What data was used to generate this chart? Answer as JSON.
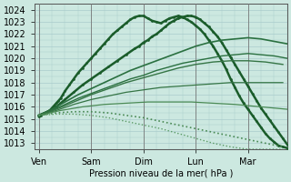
{
  "xlabel": "Pression niveau de la mer( hPa )",
  "ylim": [
    1012.5,
    1024.5
  ],
  "yticks": [
    1013,
    1014,
    1015,
    1016,
    1017,
    1018,
    1019,
    1020,
    1021,
    1022,
    1023,
    1024
  ],
  "xtick_labels": [
    "Ven",
    "Sam",
    "Dim",
    "Lun",
    "Mar"
  ],
  "xtick_positions": [
    0,
    24,
    48,
    72,
    96
  ],
  "xlim": [
    -2,
    114
  ],
  "bg_color": "#cce8e0",
  "grid_color": "#aacccc",
  "series": [
    {
      "x": [
        0,
        1,
        2,
        3,
        4,
        5,
        6,
        7,
        8,
        9,
        10,
        11,
        12,
        14,
        16,
        18,
        20,
        22,
        24,
        26,
        28,
        30,
        32,
        34,
        36,
        38,
        40,
        42,
        44,
        46,
        48,
        50,
        52,
        54,
        56,
        58,
        60,
        62,
        64,
        66,
        68,
        70,
        72,
        74,
        76,
        78,
        80,
        82,
        84,
        86,
        88,
        90,
        92,
        94,
        96,
        98,
        100,
        102,
        104,
        106,
        108,
        110,
        112,
        114
      ],
      "y": [
        1015.2,
        1015.3,
        1015.4,
        1015.5,
        1015.6,
        1015.7,
        1015.9,
        1016.1,
        1016.3,
        1016.5,
        1016.7,
        1017.0,
        1017.3,
        1017.8,
        1018.3,
        1018.8,
        1019.2,
        1019.6,
        1020.0,
        1020.4,
        1020.8,
        1021.2,
        1021.6,
        1022.0,
        1022.3,
        1022.6,
        1022.9,
        1023.2,
        1023.4,
        1023.5,
        1023.5,
        1023.3,
        1023.1,
        1023.0,
        1022.9,
        1023.1,
        1023.3,
        1023.4,
        1023.5,
        1023.4,
        1023.2,
        1023.0,
        1022.7,
        1022.4,
        1022.0,
        1021.5,
        1021.0,
        1020.4,
        1019.8,
        1019.1,
        1018.3,
        1017.6,
        1016.9,
        1016.3,
        1015.8,
        1015.3,
        1014.8,
        1014.3,
        1013.8,
        1013.4,
        1013.1,
        1012.8,
        1012.7,
        1012.6
      ],
      "style": "-",
      "lw": 1.8,
      "color": "#1a5c2a",
      "marker": ".",
      "ms": 1.8
    },
    {
      "x": [
        0,
        4,
        8,
        12,
        16,
        20,
        24,
        28,
        32,
        36,
        40,
        44,
        46,
        48,
        50,
        52,
        54,
        56,
        58,
        60,
        62,
        64,
        66,
        68,
        70,
        72,
        74,
        76,
        78,
        80,
        82,
        84,
        86,
        88,
        90,
        92,
        94,
        96,
        98,
        100,
        102,
        104,
        106,
        108,
        110,
        112,
        114
      ],
      "y": [
        1015.3,
        1015.6,
        1016.0,
        1016.6,
        1017.2,
        1017.8,
        1018.3,
        1018.8,
        1019.3,
        1019.8,
        1020.3,
        1020.8,
        1021.0,
        1021.3,
        1021.5,
        1021.8,
        1022.0,
        1022.3,
        1022.6,
        1022.9,
        1023.1,
        1023.3,
        1023.4,
        1023.5,
        1023.5,
        1023.4,
        1023.2,
        1022.9,
        1022.6,
        1022.2,
        1021.8,
        1021.3,
        1020.7,
        1020.1,
        1019.5,
        1018.9,
        1018.3,
        1017.7,
        1017.1,
        1016.5,
        1015.9,
        1015.4,
        1014.9,
        1014.4,
        1013.9,
        1013.4,
        1012.9
      ],
      "style": "-",
      "lw": 1.8,
      "color": "#1a5c2a",
      "marker": ".",
      "ms": 1.8
    },
    {
      "x": [
        0,
        6,
        12,
        18,
        24,
        30,
        36,
        42,
        48,
        54,
        60,
        66,
        72,
        78,
        84,
        90,
        96,
        102,
        108,
        114
      ],
      "y": [
        1015.3,
        1015.8,
        1016.4,
        1017.0,
        1017.5,
        1018.0,
        1018.5,
        1019.0,
        1019.4,
        1019.8,
        1020.2,
        1020.6,
        1021.0,
        1021.3,
        1021.5,
        1021.6,
        1021.7,
        1021.6,
        1021.4,
        1021.2
      ],
      "style": "-",
      "lw": 1.2,
      "color": "#2a7040",
      "marker": null,
      "ms": 0
    },
    {
      "x": [
        0,
        6,
        12,
        18,
        24,
        30,
        36,
        42,
        48,
        54,
        60,
        66,
        72,
        78,
        84,
        90,
        96,
        102,
        108,
        114
      ],
      "y": [
        1015.3,
        1015.7,
        1016.2,
        1016.7,
        1017.1,
        1017.5,
        1017.9,
        1018.3,
        1018.6,
        1019.0,
        1019.3,
        1019.6,
        1019.8,
        1020.0,
        1020.2,
        1020.3,
        1020.4,
        1020.3,
        1020.2,
        1020.0
      ],
      "style": "-",
      "lw": 1.0,
      "color": "#2a7040",
      "marker": null,
      "ms": 0
    },
    {
      "x": [
        0,
        8,
        16,
        24,
        32,
        40,
        48,
        56,
        64,
        72,
        80,
        88,
        96,
        104,
        112
      ],
      "y": [
        1015.3,
        1015.8,
        1016.4,
        1017.0,
        1017.5,
        1018.0,
        1018.4,
        1018.8,
        1019.2,
        1019.5,
        1019.7,
        1019.8,
        1019.8,
        1019.7,
        1019.5
      ],
      "style": "-",
      "lw": 1.0,
      "color": "#357545",
      "marker": null,
      "ms": 0
    },
    {
      "x": [
        0,
        8,
        16,
        24,
        32,
        40,
        48,
        56,
        64,
        72,
        80,
        88,
        96,
        104,
        112
      ],
      "y": [
        1015.3,
        1015.7,
        1016.2,
        1016.6,
        1016.9,
        1017.2,
        1017.4,
        1017.6,
        1017.7,
        1017.8,
        1017.9,
        1018.0,
        1018.0,
        1018.0,
        1018.0
      ],
      "style": "-",
      "lw": 0.9,
      "color": "#357545",
      "marker": null,
      "ms": 0
    },
    {
      "x": [
        0,
        10,
        20,
        30,
        40,
        50,
        60,
        70,
        80,
        90,
        96,
        102,
        108,
        114
      ],
      "y": [
        1015.3,
        1015.7,
        1016.0,
        1016.2,
        1016.3,
        1016.4,
        1016.4,
        1016.4,
        1016.3,
        1016.2,
        1016.1,
        1016.0,
        1015.9,
        1015.8
      ],
      "style": "-",
      "lw": 0.9,
      "color": "#4a8a55",
      "marker": null,
      "ms": 0
    },
    {
      "x": [
        0,
        8,
        16,
        24,
        32,
        40,
        48,
        56,
        64,
        72,
        80,
        88,
        96,
        104,
        112
      ],
      "y": [
        1015.3,
        1015.5,
        1015.6,
        1015.6,
        1015.5,
        1015.3,
        1015.1,
        1014.8,
        1014.5,
        1014.2,
        1013.9,
        1013.6,
        1013.3,
        1013.0,
        1012.7
      ],
      "style": ":",
      "lw": 1.2,
      "color": "#4a8a55",
      "marker": null,
      "ms": 0
    },
    {
      "x": [
        0,
        8,
        16,
        24,
        32,
        40,
        48,
        56,
        64,
        72,
        80,
        88,
        96,
        104,
        112
      ],
      "y": [
        1015.3,
        1015.4,
        1015.4,
        1015.3,
        1015.1,
        1014.8,
        1014.5,
        1014.2,
        1013.8,
        1013.4,
        1013.0,
        1012.7,
        1012.5,
        1012.5,
        1012.5
      ],
      "style": ":",
      "lw": 1.0,
      "color": "#5a9a65",
      "marker": null,
      "ms": 0
    }
  ]
}
